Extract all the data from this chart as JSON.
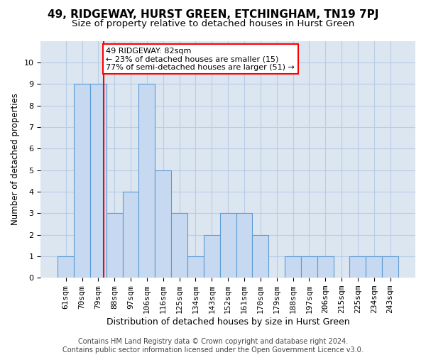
{
  "title": "49, RIDGEWAY, HURST GREEN, ETCHINGHAM, TN19 7PJ",
  "subtitle": "Size of property relative to detached houses in Hurst Green",
  "xlabel": "Distribution of detached houses by size in Hurst Green",
  "ylabel": "Number of detached properties",
  "categories": [
    "61sqm",
    "70sqm",
    "79sqm",
    "88sqm",
    "97sqm",
    "106sqm",
    "116sqm",
    "125sqm",
    "134sqm",
    "143sqm",
    "152sqm",
    "161sqm",
    "170sqm",
    "179sqm",
    "188sqm",
    "197sqm",
    "206sqm",
    "215sqm",
    "225sqm",
    "234sqm",
    "243sqm"
  ],
  "bar_values": [
    1,
    9,
    9,
    3,
    4,
    9,
    5,
    3,
    1,
    2,
    3,
    3,
    2,
    0,
    1,
    1,
    1,
    0,
    1,
    1,
    1
  ],
  "bar_color": "#c6d9f0",
  "bar_edge_color": "#5b9bd5",
  "annotation_text": "49 RIDGEWAY: 82sqm\n← 23% of detached houses are smaller (15)\n77% of semi-detached houses are larger (51) →",
  "annotation_box_color": "white",
  "annotation_box_edge_color": "red",
  "ref_line_color": "red",
  "ylim": [
    0,
    11
  ],
  "grid_color": "#b8cce4",
  "background_color": "#dce6f1",
  "footer_text": "Contains HM Land Registry data © Crown copyright and database right 2024.\nContains public sector information licensed under the Open Government Licence v3.0.",
  "title_fontsize": 11,
  "subtitle_fontsize": 9.5,
  "xlabel_fontsize": 9,
  "ylabel_fontsize": 8.5,
  "tick_fontsize": 8,
  "annotation_fontsize": 8,
  "footer_fontsize": 7
}
